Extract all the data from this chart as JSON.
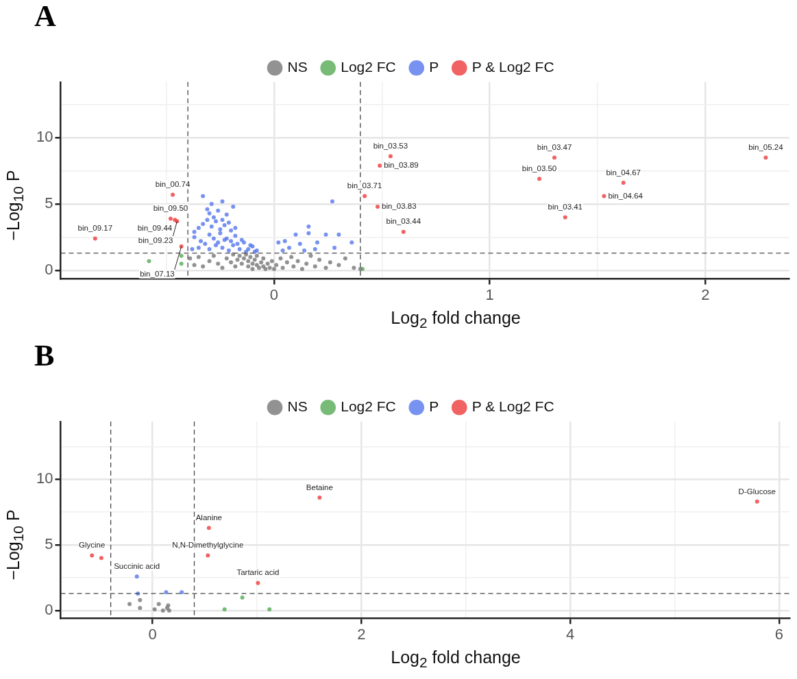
{
  "chart_data": [
    {
      "type": "scatter",
      "title": "A",
      "xlabel": "Log$_{2}$ fold change",
      "ylabel": "−Log$_{10}$ P",
      "legend": "top",
      "grid": true,
      "marker": "circle",
      "xlim": [
        -0.99,
        2.39
      ],
      "xticks": [
        {
          "value": -0.5,
          "label": null
        },
        0,
        {
          "value": 0.5,
          "label": null
        },
        1,
        {
          "value": 1.5,
          "label": null
        },
        2
      ],
      "ylim": [
        -0.65,
        14.2
      ],
      "yticks": [
        0,
        {
          "value": 2.5,
          "label": null
        },
        5,
        {
          "value": 7.5,
          "label": null
        },
        10,
        {
          "value": 12.5,
          "label": null
        }
      ],
      "ref_lines": [
        {
          "axis": "x",
          "value": -0.4,
          "color": "#444444",
          "line_style": "dashed"
        },
        {
          "axis": "x",
          "value": 0.4,
          "color": "#444444",
          "line_style": "dashed"
        },
        {
          "axis": "y",
          "value": 1.3,
          "color": "#444444",
          "line_style": "dashed"
        }
      ],
      "series": [
        {
          "name": "NS",
          "color": "#777777",
          "x": [
            -0.39,
            -0.37,
            -0.35,
            -0.33,
            -0.3,
            -0.28,
            -0.26,
            -0.24,
            -0.22,
            -0.2,
            -0.19,
            -0.18,
            -0.17,
            -0.16,
            -0.15,
            -0.14,
            -0.13,
            -0.12,
            -0.12,
            -0.11,
            -0.1,
            -0.1,
            -0.09,
            -0.08,
            -0.08,
            -0.07,
            -0.06,
            -0.05,
            -0.05,
            -0.04,
            -0.03,
            -0.02,
            -0.01,
            0.0,
            0.01,
            0.03,
            0.04,
            0.06,
            0.08,
            0.09,
            0.11,
            0.13,
            0.15,
            0.17,
            0.19,
            0.21,
            0.24,
            0.26,
            0.3,
            0.33,
            0.37,
            0.4
          ],
          "values": [
            0.9,
            0.4,
            1.0,
            0.3,
            0.7,
            1.1,
            0.5,
            0.2,
            0.9,
            0.6,
            1.2,
            0.3,
            0.8,
            1.1,
            0.5,
            0.9,
            1.2,
            0.7,
            0.3,
            1.0,
            0.5,
            0.1,
            0.8,
            0.4,
            1.1,
            0.2,
            0.6,
            0.3,
            0.9,
            0.1,
            0.5,
            0.2,
            0.7,
            0.1,
            0.4,
            0.9,
            0.2,
            0.6,
            1.0,
            0.3,
            0.7,
            0.1,
            0.5,
            1.1,
            0.3,
            0.8,
            0.2,
            0.6,
            0.4,
            0.9,
            0.2,
            0.1
          ]
        },
        {
          "name": "Log2 FC",
          "color": "#55aa55",
          "x": [
            -0.58,
            -0.43,
            -0.43,
            0.41
          ],
          "values": [
            0.7,
            0.5,
            1.1,
            0.1
          ]
        },
        {
          "name": "P",
          "color": "#5577ee",
          "x": [
            -0.38,
            -0.37,
            -0.37,
            -0.35,
            -0.35,
            -0.34,
            -0.33,
            -0.33,
            -0.32,
            -0.31,
            -0.31,
            -0.3,
            -0.3,
            -0.3,
            -0.29,
            -0.29,
            -0.28,
            -0.28,
            -0.27,
            -0.27,
            -0.26,
            -0.26,
            -0.25,
            -0.25,
            -0.24,
            -0.24,
            -0.24,
            -0.23,
            -0.23,
            -0.22,
            -0.22,
            -0.21,
            -0.21,
            -0.2,
            -0.2,
            -0.19,
            -0.19,
            -0.18,
            -0.18,
            -0.17,
            -0.16,
            -0.15,
            -0.14,
            -0.13,
            -0.12,
            -0.11,
            -0.1,
            -0.09,
            -0.08,
            0.02,
            0.04,
            0.05,
            0.07,
            0.1,
            0.12,
            0.14,
            0.16,
            0.16,
            0.19,
            0.2,
            0.24,
            0.27,
            0.28,
            0.3,
            0.36
          ],
          "values": [
            1.6,
            2.5,
            2.9,
            1.7,
            3.2,
            2.2,
            5.6,
            3.5,
            2.0,
            3.8,
            4.6,
            4.3,
            2.7,
            1.6,
            3.3,
            5.0,
            2.4,
            4.0,
            3.7,
            1.9,
            2.1,
            4.5,
            3.1,
            2.8,
            5.2,
            3.8,
            1.7,
            3.4,
            2.3,
            2.4,
            4.2,
            3.6,
            1.5,
            3.0,
            2.2,
            4.8,
            1.9,
            2.6,
            3.2,
            2.0,
            1.6,
            2.3,
            2.1,
            1.4,
            1.6,
            1.9,
            1.8,
            1.4,
            1.5,
            2.1,
            1.5,
            2.2,
            1.7,
            2.7,
            2.0,
            1.5,
            3.3,
            2.8,
            1.6,
            2.1,
            2.7,
            5.2,
            1.7,
            2.7,
            2.1
          ]
        },
        {
          "name": "P & Log2 FC",
          "color": "#ee3b3b",
          "x": [
            2.28,
            1.3,
            0.54,
            0.49,
            1.23,
            1.62,
            1.53,
            0.42,
            0.48,
            1.35,
            0.6,
            -0.47,
            -0.48,
            -0.46,
            -0.45,
            -0.43,
            -0.83
          ],
          "values": [
            8.5,
            8.5,
            8.6,
            7.9,
            6.9,
            6.6,
            5.6,
            5.6,
            4.8,
            4.0,
            2.9,
            5.7,
            3.9,
            3.8,
            3.7,
            1.8,
            2.4
          ]
        }
      ],
      "annotations": [
        {
          "text": "bin_05.24",
          "x": 2.28,
          "y": 8.5
        },
        {
          "text": "bin_03.47",
          "x": 1.3,
          "y": 8.5
        },
        {
          "text": "bin_03.53",
          "x": 0.54,
          "y": 8.6
        },
        {
          "text": "bin_03.89",
          "x": 0.49,
          "y": 7.9
        },
        {
          "text": "bin_03.50",
          "x": 1.23,
          "y": 6.9
        },
        {
          "text": "bin_04.67",
          "x": 1.62,
          "y": 6.6
        },
        {
          "text": "bin_04.64",
          "x": 1.53,
          "y": 5.6
        },
        {
          "text": "bin_03.71",
          "x": 0.42,
          "y": 5.6
        },
        {
          "text": "bin_03.83",
          "x": 0.48,
          "y": 4.8
        },
        {
          "text": "bin_03.41",
          "x": 1.35,
          "y": 4.0
        },
        {
          "text": "bin_03.44",
          "x": 0.6,
          "y": 2.9
        },
        {
          "text": "bin_00.74",
          "x": -0.47,
          "y": 5.7
        },
        {
          "text": "bin_09.50",
          "x": -0.48,
          "y": 3.9
        },
        {
          "text": "bin_09.44",
          "x": -0.46,
          "y": 3.8
        },
        {
          "text": "bin_09.23",
          "x": -0.45,
          "y": 3.7
        },
        {
          "text": "bin_07.13",
          "x": -0.43,
          "y": 1.8
        },
        {
          "text": "bin_09.17",
          "x": -0.83,
          "y": 2.4
        }
      ]
    },
    {
      "type": "scatter",
      "title": "B",
      "xlabel": "Log$_{2}$ fold change",
      "ylabel": "−Log$_{10}$ P",
      "legend": "top",
      "grid": true,
      "marker": "circle",
      "xlim": [
        -0.88,
        6.1
      ],
      "xticks": [
        0,
        {
          "value": 1,
          "label": null
        },
        2,
        {
          "value": 3,
          "label": null
        },
        4,
        {
          "value": 5,
          "label": null
        },
        6
      ],
      "ylim": [
        -0.6,
        14.4
      ],
      "yticks": [
        0,
        {
          "value": 2.5,
          "label": null
        },
        5,
        {
          "value": 7.5,
          "label": null
        },
        10,
        {
          "value": 12.5,
          "label": null
        }
      ],
      "ref_lines": [
        {
          "axis": "x",
          "value": -0.4,
          "color": "#444444",
          "line_style": "dashed"
        },
        {
          "axis": "x",
          "value": 0.4,
          "color": "#444444",
          "line_style": "dashed"
        },
        {
          "axis": "y",
          "value": 1.3,
          "color": "#444444",
          "line_style": "dashed"
        }
      ],
      "series": [
        {
          "name": "NS",
          "color": "#777777",
          "x": [
            -0.22,
            -0.12,
            -0.12,
            0.02,
            0.06,
            0.1,
            0.14,
            0.16,
            0.15
          ],
          "values": [
            0.5,
            0.8,
            0.2,
            0.1,
            0.5,
            0.0,
            0.2,
            0.0,
            0.4
          ]
        },
        {
          "name": "Log2 FC",
          "color": "#55aa55",
          "x": [
            0.69,
            0.86,
            1.12
          ],
          "values": [
            0.1,
            1.0,
            0.1
          ]
        },
        {
          "name": "P",
          "color": "#5577ee",
          "x": [
            -0.15,
            -0.14,
            0.13,
            0.28
          ],
          "values": [
            2.6,
            1.3,
            1.4,
            1.4
          ]
        },
        {
          "name": "P & Log2 FC",
          "color": "#ee3b3b",
          "x": [
            -0.58,
            -0.49,
            0.54,
            0.53,
            1.01,
            1.6,
            5.79
          ],
          "values": [
            4.2,
            4.0,
            6.3,
            4.2,
            2.1,
            8.6,
            8.3
          ]
        }
      ],
      "annotations": [
        {
          "text": "Glycine",
          "x": -0.58,
          "y": 4.2
        },
        {
          "text": "Succinic acid",
          "x": -0.15,
          "y": 2.6
        },
        {
          "text": "Alanine",
          "x": 0.54,
          "y": 6.3
        },
        {
          "text": "N,N-Dimethylglycine",
          "x": 0.53,
          "y": 4.2
        },
        {
          "text": "Tartaric acid",
          "x": 1.01,
          "y": 2.1
        },
        {
          "text": "Betaine",
          "x": 1.6,
          "y": 8.6
        },
        {
          "text": "D-Glucose",
          "x": 5.79,
          "y": 8.3
        }
      ]
    }
  ]
}
